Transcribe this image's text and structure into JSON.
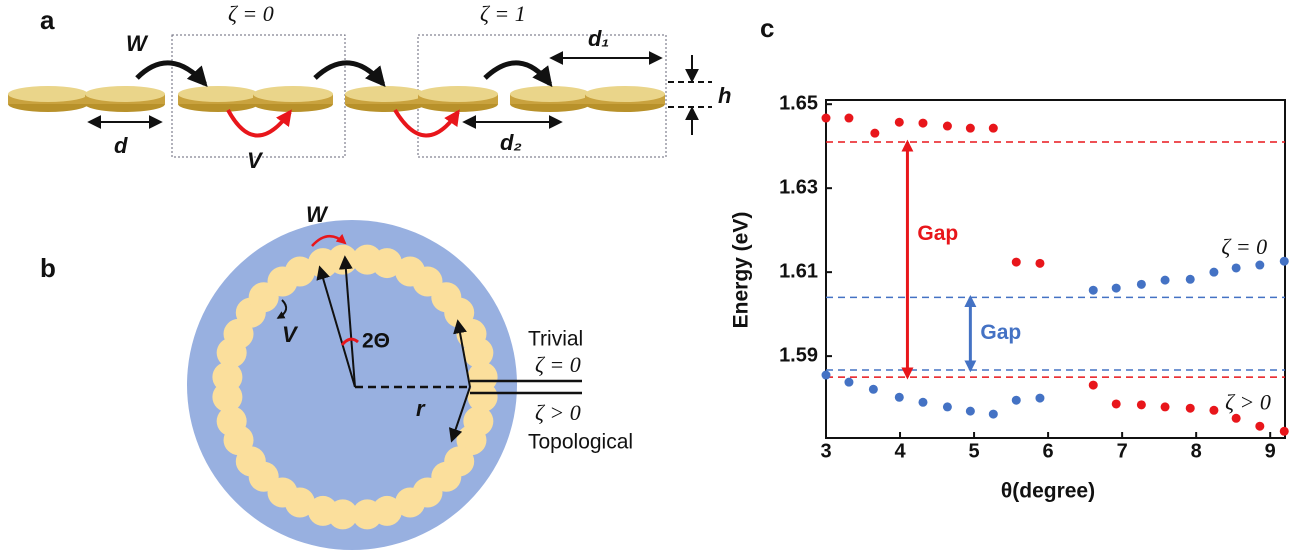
{
  "panel_a": {
    "label": "a",
    "w": "W",
    "v": "V",
    "zeta0": "ζ = 0",
    "zeta1": "ζ = 1",
    "d": "d",
    "d1": "d₁",
    "d2": "d₂",
    "h": "h"
  },
  "panel_b": {
    "label": "b",
    "w": "W",
    "v": "V",
    "angle": "2Θ",
    "r": "r",
    "trivial": "Trivial",
    "zeta0": "ζ = 0",
    "zeta_pos": "ζ > 0",
    "topological": "Topological"
  },
  "chart_data": {
    "type": "scatter",
    "panel_label": "c",
    "x_label": "θ(degree)",
    "y_label": "Energy (eV)",
    "xlim": [
      3,
      9.2
    ],
    "ylim": [
      1.5705,
      1.651
    ],
    "xticks": [
      3,
      4,
      5,
      6,
      7,
      8,
      9
    ],
    "yticks": [
      1.59,
      1.61,
      1.63,
      1.65
    ],
    "series": [
      {
        "color": "#e8161b",
        "x": [
          3.0,
          3.31,
          3.66,
          3.99,
          4.31,
          4.64,
          4.95,
          5.26,
          5.57,
          5.89,
          6.61,
          6.92,
          7.26,
          7.58,
          7.92,
          8.24,
          8.54,
          8.86,
          9.19
        ],
        "values": [
          1.6467,
          1.6467,
          1.6431,
          1.6457,
          1.6455,
          1.6448,
          1.6443,
          1.6443,
          1.6124,
          1.6121,
          1.5831,
          1.5786,
          1.5784,
          1.5779,
          1.5776,
          1.5771,
          1.5752,
          1.5733,
          1.5721
        ]
      },
      {
        "color": "#4472c4",
        "x": [
          3.0,
          3.31,
          3.64,
          3.99,
          4.31,
          4.64,
          4.95,
          5.26,
          5.57,
          5.89,
          6.61,
          6.92,
          7.26,
          7.58,
          7.92,
          8.24,
          8.54,
          8.86,
          9.19
        ],
        "values": [
          1.5855,
          1.5838,
          1.5821,
          1.5802,
          1.579,
          1.5779,
          1.5769,
          1.5762,
          1.5795,
          1.58,
          1.6057,
          1.6062,
          1.6071,
          1.6081,
          1.6083,
          1.61,
          1.611,
          1.6117,
          1.6126
        ]
      }
    ],
    "reference_lines": [
      {
        "value": 1.641,
        "color": "#e8161b"
      },
      {
        "value": 1.585,
        "color": "#e8161b"
      },
      {
        "value": 1.604,
        "color": "#4472c4"
      },
      {
        "value": 1.5867,
        "color": "#4472c4"
      }
    ],
    "annotations": [
      {
        "text": "Gap",
        "color": "#e8161b",
        "x": 4.1,
        "from": 1.585,
        "to": 1.641
      },
      {
        "text": "Gap",
        "color": "#4472c4",
        "x": 4.95,
        "from": 1.5867,
        "to": 1.604
      },
      {
        "text": "ζ = 0",
        "x": 8.65,
        "y": 1.6155
      },
      {
        "text": "ζ > 0",
        "x": 8.7,
        "y": 1.5785
      }
    ]
  }
}
